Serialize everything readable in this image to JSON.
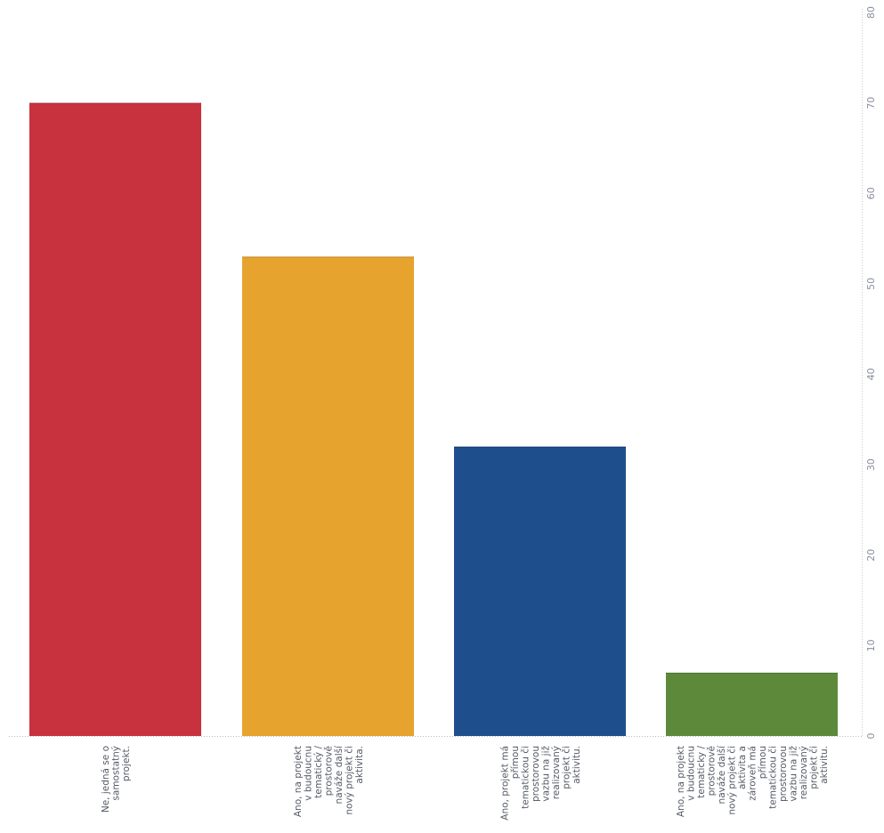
{
  "chart_data": {
    "type": "bar",
    "title": "",
    "xlabel": "",
    "ylabel": "",
    "orientation": "vertical bars, figure rotated 90 degrees; value-axis labels on right side",
    "ylim": [
      0,
      80
    ],
    "y_ticks": [
      "0",
      "10",
      "20",
      "30",
      "40",
      "50",
      "60",
      "70",
      "80"
    ],
    "grid": false,
    "legend": "none",
    "categories": [
      [
        "Ne, jedná se o",
        "samostatný",
        "projekt."
      ],
      [
        "Ano, na projekt",
        "v budoucnu",
        "tematický /",
        "prostorově",
        "naváže další",
        "nový projekt či",
        "aktivita."
      ],
      [
        "Ano, projekt má",
        "přímou",
        "tematickou či",
        "prostorovou",
        "vazbu na již",
        "realizovaný",
        "projekt či",
        "aktivitu."
      ],
      [
        "Ano, na projekt",
        "v budoucnu",
        "tematicky /",
        "prostorově",
        "naváže další",
        "nový projekt či",
        "aktivita a",
        "zároveň má",
        "přímou",
        "tematickou či",
        "prostorovou",
        "vazbu na již",
        "realizovaný",
        "projekt či",
        "aktivitu."
      ]
    ],
    "values": [
      70,
      53,
      32,
      7
    ],
    "colors": [
      "#c8323f",
      "#e6a42e",
      "#1f4e8c",
      "#5c8a3a"
    ]
  }
}
